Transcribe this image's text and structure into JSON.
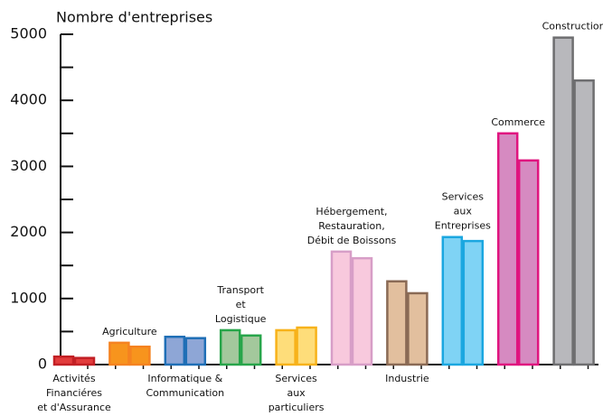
{
  "chart_data": {
    "type": "bar",
    "y_label": "Nombre d'entreprises",
    "categories": [
      "Activités\nFinanciéres\net d'Assurance",
      "Agriculture",
      "Informatique &\nCommunication",
      "Transport\net\nLogistique",
      "Services\naux\nparticuliers",
      "Hébergement,\nRestauration,\nDébit de Boissons",
      "Industrie",
      "Services\naux\nEntreprises",
      "Commerce",
      "Construction"
    ],
    "series": [
      {
        "values": [
          120,
          330,
          420,
          520,
          520,
          1710,
          1260,
          1930,
          3500,
          4950
        ]
      },
      {
        "values": [
          100,
          270,
          400,
          440,
          560,
          1610,
          1080,
          1870,
          3090,
          4300
        ]
      }
    ],
    "colors": [
      {
        "fill": "#e23c3c",
        "stroke": "#c21f24"
      },
      {
        "fill": "#f7941d",
        "stroke": "#f58220"
      },
      {
        "fill": "#8ea6d6",
        "stroke": "#1f6fb6"
      },
      {
        "fill": "#a3c89c",
        "stroke": "#27a54a"
      },
      {
        "fill": "#fedd7a",
        "stroke": "#f7b21b"
      },
      {
        "fill": "#f8c9dd",
        "stroke": "#d79ec7"
      },
      {
        "fill": "#e2bf9e",
        "stroke": "#8a6a55"
      },
      {
        "fill": "#7fd3f5",
        "stroke": "#1ba7e0"
      },
      {
        "fill": "#d68ac1",
        "stroke": "#e0147f"
      },
      {
        "fill": "#b8b8bc",
        "stroke": "#6e6e70"
      }
    ],
    "ylim": [
      0,
      5000
    ],
    "yticks": [
      0,
      1000,
      2000,
      3000,
      4000,
      5000
    ]
  }
}
